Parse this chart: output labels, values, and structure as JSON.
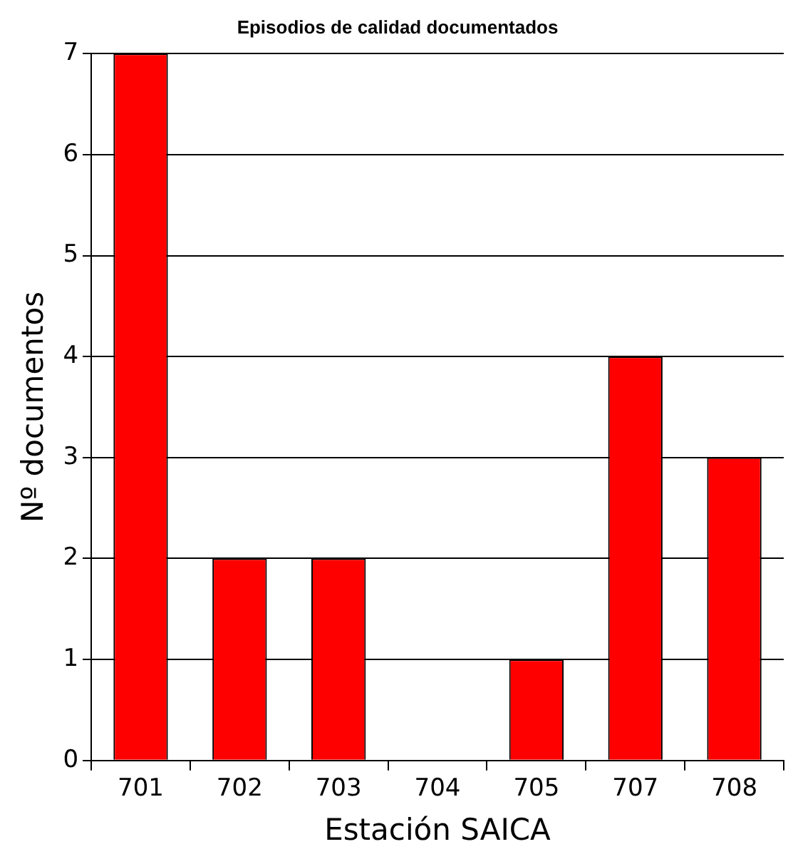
{
  "chart_data": {
    "type": "bar",
    "title": "Episodios de calidad documentados",
    "xlabel": "Estación SAICA",
    "ylabel": "Nº documentos",
    "categories": [
      "701",
      "702",
      "703",
      "704",
      "705",
      "707",
      "708"
    ],
    "values": [
      7,
      2,
      2,
      0,
      1,
      4,
      3
    ],
    "color": "#ff0000",
    "ylim": [
      0,
      7
    ],
    "yticks": [
      0,
      1,
      2,
      3,
      4,
      5,
      6,
      7
    ],
    "grid": "y",
    "legend": false
  }
}
